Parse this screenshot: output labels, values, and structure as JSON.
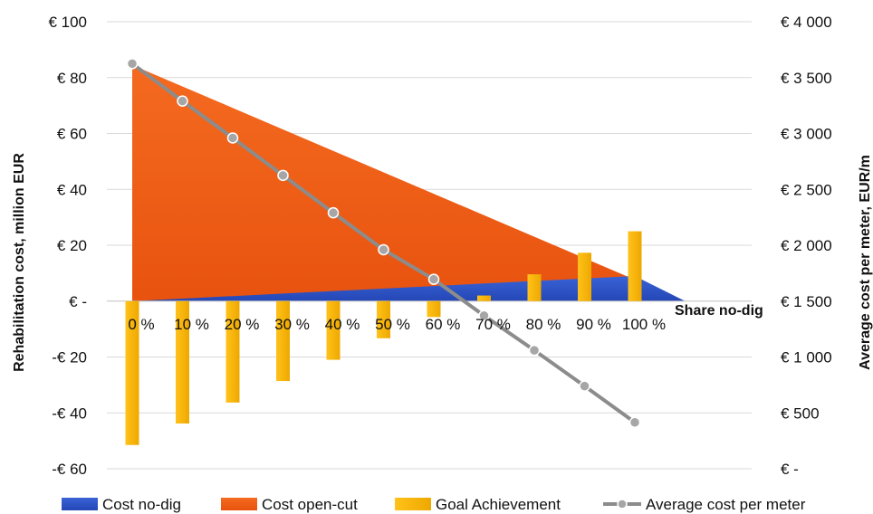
{
  "chart_data": {
    "type": "area",
    "x_axis_title": "Share no-dig",
    "categories": [
      "0 %",
      "10 %",
      "20 %",
      "30 %",
      "40 %",
      "50 %",
      "60 %",
      "70 %",
      "80 %",
      "90 %",
      "100 %"
    ],
    "y_left": {
      "label": "Rehabilitation cost, million EUR",
      "min": -60,
      "max": 100,
      "step": 20,
      "tick_labels": [
        "-€ 60",
        "-€ 40",
        "-€ 20",
        "€ -",
        "€ 20",
        "€ 40",
        "€ 60",
        "€ 80",
        "€ 100"
      ]
    },
    "y_right": {
      "label": "Average cost per meter, EUR/m",
      "min": 0,
      "max": 4000,
      "step": 500,
      "tick_labels": [
        "€ -",
        "€ 500",
        "€ 1 000",
        "€ 1 500",
        "€ 2 000",
        "€ 2 500",
        "€ 3 000",
        "€ 3 500",
        "€ 4 000"
      ]
    },
    "series": [
      {
        "name": "Cost no-dig",
        "kind": "area",
        "axis": "left",
        "color": "#2F55C7",
        "values": [
          0,
          0.9,
          1.8,
          2.7,
          3.6,
          4.5,
          5.4,
          6.3,
          7.2,
          8.1,
          9.0
        ]
      },
      {
        "name": "Cost open-cut",
        "kind": "area",
        "axis": "left",
        "color": "#F2661E",
        "values": [
          84.5,
          76.0,
          67.6,
          59.1,
          50.7,
          42.2,
          33.8,
          25.3,
          16.9,
          8.4,
          0
        ]
      },
      {
        "name": "Goal Achievement",
        "kind": "bar",
        "axis": "left",
        "color": "#F5B400",
        "values": [
          -51.5,
          -43.8,
          -36.3,
          -28.6,
          -21.0,
          -13.3,
          -5.7,
          2.0,
          9.6,
          17.3,
          25.0
        ]
      },
      {
        "name": "Average cost per meter",
        "kind": "line",
        "axis": "right",
        "color": "#8C8C8C",
        "values": [
          3625,
          3290,
          2960,
          2625,
          2290,
          1960,
          1695,
          1370,
          1060,
          740,
          415
        ]
      }
    ],
    "grid": true,
    "legend_position": "bottom"
  }
}
